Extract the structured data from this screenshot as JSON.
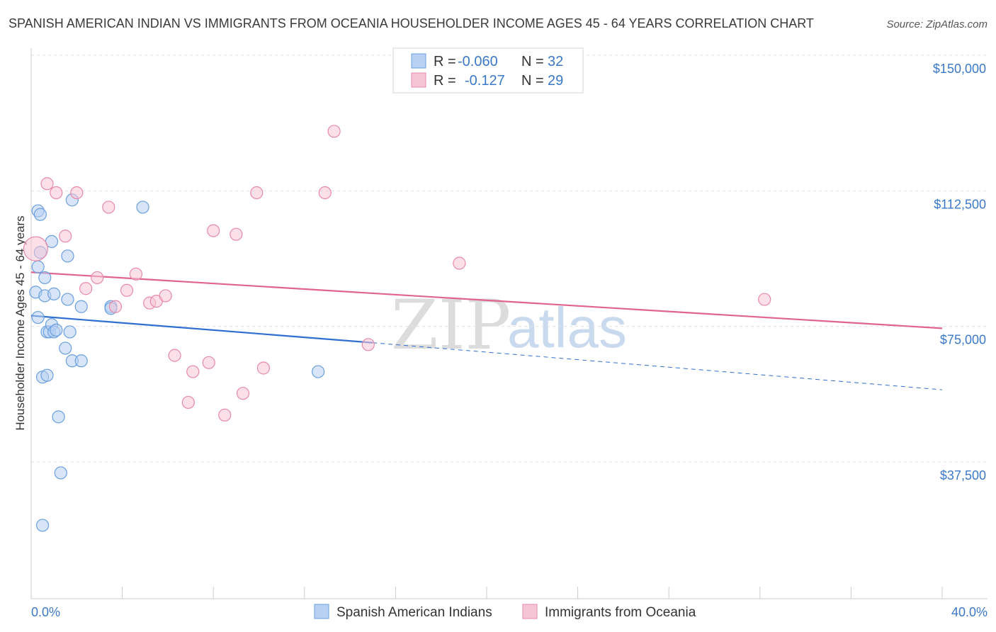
{
  "chart_data": {
    "type": "scatter",
    "title": "SPANISH AMERICAN INDIAN VS IMMIGRANTS FROM OCEANIA HOUSEHOLDER INCOME AGES 45 - 64 YEARS CORRELATION CHART",
    "source": "Source: ZipAtlas.com",
    "xlabel": "",
    "ylabel": "Householder Income Ages 45 - 64 years",
    "xlim": [
      0,
      40
    ],
    "ylim": [
      0,
      155000
    ],
    "x_tick_labels": [
      {
        "value": 0,
        "label": "0.0%"
      },
      {
        "value": 40,
        "label": "40.0%"
      }
    ],
    "y_tick_labels": [
      {
        "value": 150000,
        "label": "$150,000"
      },
      {
        "value": 112500,
        "label": "$112,500"
      },
      {
        "value": 75000,
        "label": "$75,000"
      },
      {
        "value": 37500,
        "label": "$37,500"
      }
    ],
    "x_minor_ticks": [
      0,
      4,
      8,
      12,
      16,
      20,
      24,
      28,
      32,
      36,
      40
    ],
    "grid": true,
    "watermark": {
      "zip": "ZIP",
      "atlas": "atlas"
    },
    "legend": {
      "position": "top-center",
      "entries": [
        {
          "series": "Spanish American Indians",
          "r_label": "R =",
          "r_value": "-0.060",
          "n_label": "N =",
          "n_value": "32"
        },
        {
          "series": "Immigrants from Oceania",
          "r_label": "R =",
          "r_value": "-0.127",
          "n_label": "N =",
          "n_value": "29"
        }
      ]
    },
    "series": [
      {
        "name": "Spanish American Indians",
        "color": "#6a9fe0",
        "fill": "#b8d0f2",
        "trend": {
          "x0": 0,
          "y0": 81500,
          "x1": 15,
          "y1": 74000,
          "x_dash_end": 40,
          "y_dash_end": 61000,
          "color": "#2f6fd0"
        },
        "points": [
          [
            0.2,
            88000
          ],
          [
            0.3,
            95000
          ],
          [
            0.3,
            81000
          ],
          [
            0.4,
            99000
          ],
          [
            0.3,
            110500
          ],
          [
            0.4,
            109500
          ],
          [
            0.5,
            64500
          ],
          [
            0.6,
            92000
          ],
          [
            0.6,
            87000
          ],
          [
            0.7,
            65000
          ],
          [
            0.7,
            77000
          ],
          [
            0.8,
            77000
          ],
          [
            0.9,
            79000
          ],
          [
            1.0,
            77000
          ],
          [
            0.9,
            102000
          ],
          [
            1.0,
            87500
          ],
          [
            1.1,
            77500
          ],
          [
            1.2,
            53500
          ],
          [
            1.3,
            38000
          ],
          [
            1.5,
            72500
          ],
          [
            1.6,
            86000
          ],
          [
            1.6,
            98000
          ],
          [
            1.7,
            77000
          ],
          [
            1.8,
            69000
          ],
          [
            1.8,
            113500
          ],
          [
            2.2,
            69000
          ],
          [
            2.2,
            84000
          ],
          [
            3.5,
            84000
          ],
          [
            3.5,
            83500
          ],
          [
            4.9,
            111500
          ],
          [
            12.6,
            66000
          ],
          [
            0.5,
            23500
          ]
        ]
      },
      {
        "name": "Immigrants from Oceania",
        "color": "#e889aa",
        "fill": "#f7c6d6",
        "trend": {
          "x0": 0,
          "y0": 93500,
          "x1": 40,
          "y1": 78000,
          "color": "#e0648f"
        },
        "points": [
          [
            0.2,
            100000
          ],
          [
            0.7,
            118000
          ],
          [
            1.1,
            115500
          ],
          [
            1.5,
            103500
          ],
          [
            2.0,
            115500
          ],
          [
            2.4,
            89000
          ],
          [
            2.9,
            92000
          ],
          [
            3.4,
            111500
          ],
          [
            3.7,
            84000
          ],
          [
            4.2,
            88500
          ],
          [
            4.6,
            93000
          ],
          [
            5.2,
            85000
          ],
          [
            5.5,
            85500
          ],
          [
            5.9,
            87000
          ],
          [
            6.3,
            70500
          ],
          [
            6.9,
            57500
          ],
          [
            7.1,
            66000
          ],
          [
            7.8,
            68500
          ],
          [
            8.0,
            105000
          ],
          [
            8.5,
            54000
          ],
          [
            9.0,
            104000
          ],
          [
            9.3,
            60000
          ],
          [
            9.9,
            115500
          ],
          [
            10.2,
            67000
          ],
          [
            12.9,
            115500
          ],
          [
            13.3,
            132500
          ],
          [
            14.8,
            73500
          ],
          [
            18.8,
            96000
          ],
          [
            32.2,
            86000
          ]
        ]
      }
    ]
  }
}
